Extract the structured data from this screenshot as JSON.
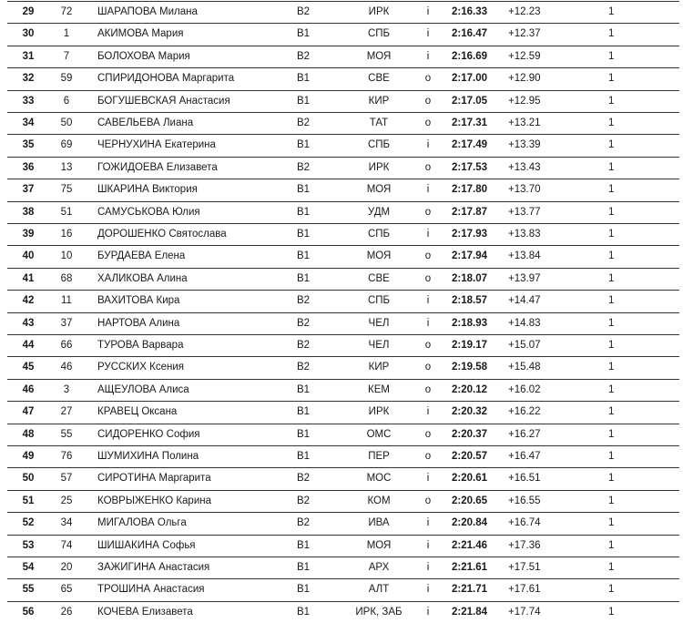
{
  "rows": [
    {
      "rank": "29",
      "bib": "72",
      "name": "ШАРАПОВА Милана",
      "cls": "B2",
      "region": "ИРК",
      "io": "i",
      "time": "2:16.33",
      "diff": "+12.23",
      "count": "1"
    },
    {
      "rank": "30",
      "bib": "1",
      "name": "АКИМОВА Мария",
      "cls": "B1",
      "region": "СПБ",
      "io": "i",
      "time": "2:16.47",
      "diff": "+12.37",
      "count": "1"
    },
    {
      "rank": "31",
      "bib": "7",
      "name": "БОЛОХОВА Мария",
      "cls": "B2",
      "region": "МОЯ",
      "io": "i",
      "time": "2:16.69",
      "diff": "+12.59",
      "count": "1"
    },
    {
      "rank": "32",
      "bib": "59",
      "name": "СПИРИДОНОВА Маргарита",
      "cls": "B1",
      "region": "СВЕ",
      "io": "o",
      "time": "2:17.00",
      "diff": "+12.90",
      "count": "1"
    },
    {
      "rank": "33",
      "bib": "6",
      "name": "БОГУШЕВСКАЯ Анастасия",
      "cls": "B1",
      "region": "КИР",
      "io": "o",
      "time": "2:17.05",
      "diff": "+12.95",
      "count": "1"
    },
    {
      "rank": "34",
      "bib": "50",
      "name": "САВЕЛЬЕВА Лиана",
      "cls": "B2",
      "region": "ТАТ",
      "io": "o",
      "time": "2:17.31",
      "diff": "+13.21",
      "count": "1"
    },
    {
      "rank": "35",
      "bib": "69",
      "name": "ЧЕРНУХИНА Екатерина",
      "cls": "B1",
      "region": "СПБ",
      "io": "i",
      "time": "2:17.49",
      "diff": "+13.39",
      "count": "1"
    },
    {
      "rank": "36",
      "bib": "13",
      "name": "ГОЖИДОЕВА Елизавета",
      "cls": "B2",
      "region": "ИРК",
      "io": "o",
      "time": "2:17.53",
      "diff": "+13.43",
      "count": "1"
    },
    {
      "rank": "37",
      "bib": "75",
      "name": "ШКАРИНА Виктория",
      "cls": "B1",
      "region": "МОЯ",
      "io": "i",
      "time": "2:17.80",
      "diff": "+13.70",
      "count": "1"
    },
    {
      "rank": "38",
      "bib": "51",
      "name": "САМУСЬКОВА Юлия",
      "cls": "B1",
      "region": "УДМ",
      "io": "o",
      "time": "2:17.87",
      "diff": "+13.77",
      "count": "1"
    },
    {
      "rank": "39",
      "bib": "16",
      "name": "ДОРОШЕНКО Святослава",
      "cls": "B1",
      "region": "СПБ",
      "io": "i",
      "time": "2:17.93",
      "diff": "+13.83",
      "count": "1"
    },
    {
      "rank": "40",
      "bib": "10",
      "name": "БУРДАЕВА Елена",
      "cls": "B1",
      "region": "МОЯ",
      "io": "o",
      "time": "2:17.94",
      "diff": "+13.84",
      "count": "1"
    },
    {
      "rank": "41",
      "bib": "68",
      "name": "ХАЛИКОВА Алина",
      "cls": "B1",
      "region": "СВЕ",
      "io": "o",
      "time": "2:18.07",
      "diff": "+13.97",
      "count": "1"
    },
    {
      "rank": "42",
      "bib": "11",
      "name": "ВАХИТОВА Кира",
      "cls": "B2",
      "region": "СПБ",
      "io": "i",
      "time": "2:18.57",
      "diff": "+14.47",
      "count": "1"
    },
    {
      "rank": "43",
      "bib": "37",
      "name": "НАРТОВА Алина",
      "cls": "B2",
      "region": "ЧЕЛ",
      "io": "i",
      "time": "2:18.93",
      "diff": "+14.83",
      "count": "1"
    },
    {
      "rank": "44",
      "bib": "66",
      "name": "ТУРОВА Варвара",
      "cls": "B2",
      "region": "ЧЕЛ",
      "io": "o",
      "time": "2:19.17",
      "diff": "+15.07",
      "count": "1"
    },
    {
      "rank": "45",
      "bib": "46",
      "name": "РУССКИХ Ксения",
      "cls": "B2",
      "region": "КИР",
      "io": "o",
      "time": "2:19.58",
      "diff": "+15.48",
      "count": "1"
    },
    {
      "rank": "46",
      "bib": "3",
      "name": "АЩЕУЛОВА Алиса",
      "cls": "B1",
      "region": "КЕМ",
      "io": "o",
      "time": "2:20.12",
      "diff": "+16.02",
      "count": "1"
    },
    {
      "rank": "47",
      "bib": "27",
      "name": "КРАВЕЦ Оксана",
      "cls": "B1",
      "region": "ИРК",
      "io": "i",
      "time": "2:20.32",
      "diff": "+16.22",
      "count": "1"
    },
    {
      "rank": "48",
      "bib": "55",
      "name": "СИДОРЕНКО София",
      "cls": "B1",
      "region": "ОМС",
      "io": "o",
      "time": "2:20.37",
      "diff": "+16.27",
      "count": "1"
    },
    {
      "rank": "49",
      "bib": "76",
      "name": "ШУМИХИНА Полина",
      "cls": "B1",
      "region": "ПЕР",
      "io": "o",
      "time": "2:20.57",
      "diff": "+16.47",
      "count": "1"
    },
    {
      "rank": "50",
      "bib": "57",
      "name": "СИРОТИНА Маргарита",
      "cls": "B2",
      "region": "МОС",
      "io": "i",
      "time": "2:20.61",
      "diff": "+16.51",
      "count": "1"
    },
    {
      "rank": "51",
      "bib": "25",
      "name": "КОВРЫЖЕНКО Карина",
      "cls": "B2",
      "region": "КОМ",
      "io": "o",
      "time": "2:20.65",
      "diff": "+16.55",
      "count": "1"
    },
    {
      "rank": "52",
      "bib": "34",
      "name": "МИГАЛОВА Ольга",
      "cls": "B2",
      "region": "ИВА",
      "io": "i",
      "time": "2:20.84",
      "diff": "+16.74",
      "count": "1"
    },
    {
      "rank": "53",
      "bib": "74",
      "name": "ШИШАКИНА Софья",
      "cls": "B1",
      "region": "МОЯ",
      "io": "i",
      "time": "2:21.46",
      "diff": "+17.36",
      "count": "1"
    },
    {
      "rank": "54",
      "bib": "20",
      "name": "ЗАЖИГИНА Анастасия",
      "cls": "B1",
      "region": "АРХ",
      "io": "i",
      "time": "2:21.61",
      "diff": "+17.51",
      "count": "1"
    },
    {
      "rank": "55",
      "bib": "65",
      "name": "ТРОШИНА Анастасия",
      "cls": "B1",
      "region": "АЛТ",
      "io": "i",
      "time": "2:21.71",
      "diff": "+17.61",
      "count": "1"
    },
    {
      "rank": "56",
      "bib": "26",
      "name": "КОЧЕВА Елизавета",
      "cls": "B1",
      "region": "ИРК, ЗАБ",
      "io": "i",
      "time": "2:21.84",
      "diff": "+17.74",
      "count": "1"
    }
  ]
}
